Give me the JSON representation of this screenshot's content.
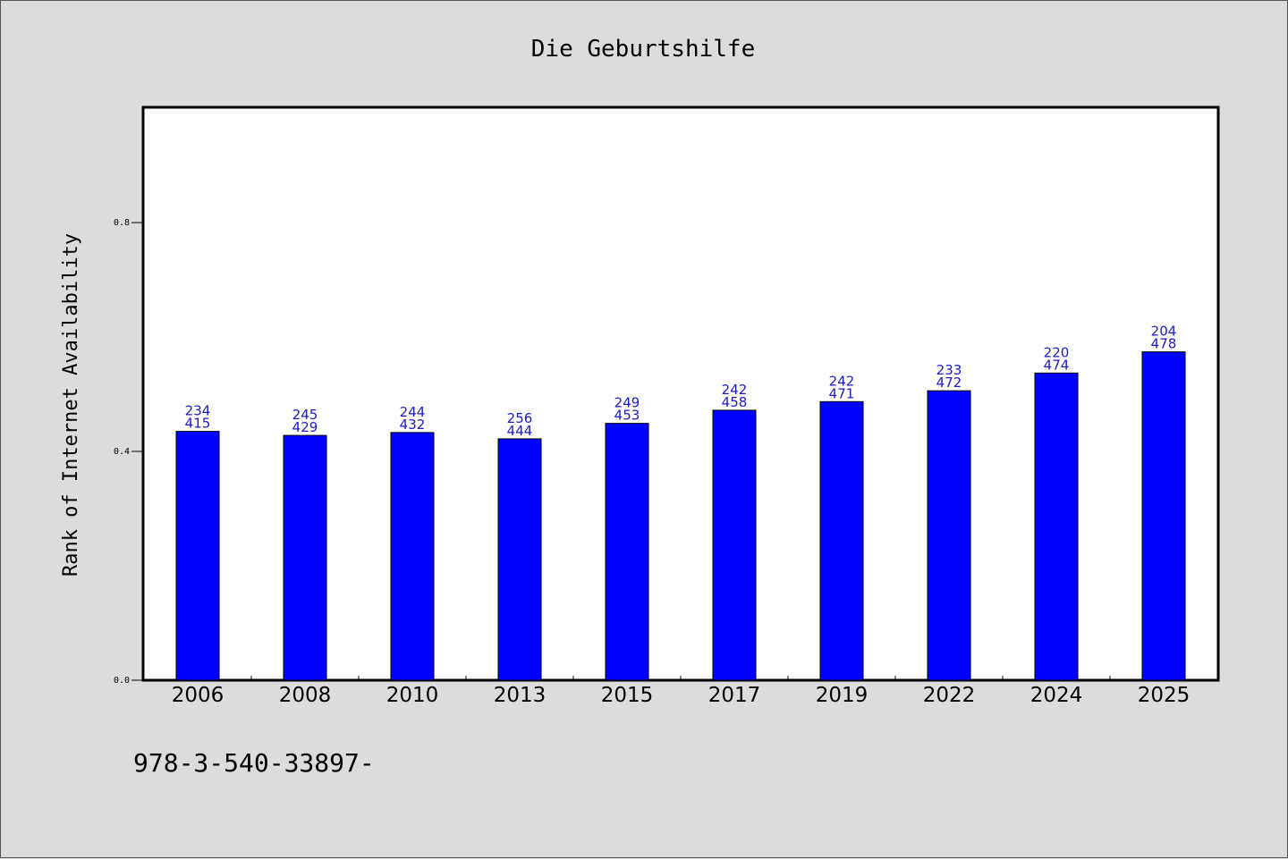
{
  "chart_data": {
    "type": "bar",
    "title": "Die Geburtshilfe",
    "xlabel": "",
    "ylabel": "Rank of Internet Availability",
    "categories": [
      "2006",
      "2008",
      "2010",
      "2013",
      "2015",
      "2017",
      "2019",
      "2022",
      "2024",
      "2025"
    ],
    "series": [
      {
        "values": [
          0.435,
          0.428,
          0.433,
          0.422,
          0.449,
          0.472,
          0.487,
          0.506,
          0.537,
          0.574
        ],
        "color": "#0000ff"
      }
    ],
    "data_labels": [
      [
        "234",
        "415"
      ],
      [
        "245",
        "429"
      ],
      [
        "244",
        "432"
      ],
      [
        "256",
        "444"
      ],
      [
        "249",
        "453"
      ],
      [
        "242",
        "458"
      ],
      [
        "242",
        "471"
      ],
      [
        "233",
        "472"
      ],
      [
        "220",
        "474"
      ],
      [
        "204",
        "478"
      ]
    ],
    "ylim": [
      0,
      1
    ],
    "yticks": [
      0.0,
      0.4,
      0.8
    ],
    "ytick_labels": [
      "0.0",
      "0.4",
      "0.8"
    ],
    "grid": false,
    "legend": "none",
    "label_color": "#1a1acc"
  },
  "footnote": "978-3-540-33897-"
}
